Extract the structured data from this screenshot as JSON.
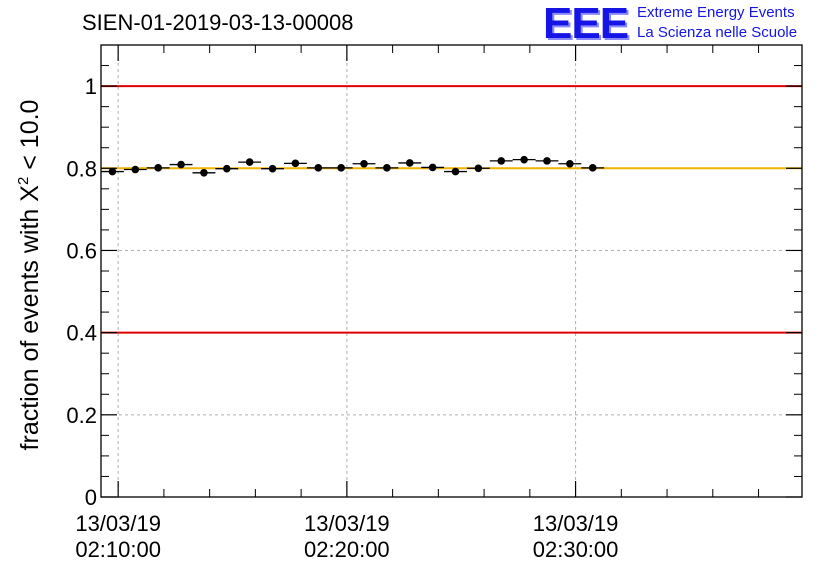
{
  "header": {
    "run_title": "SIEN-01-2019-03-13-00008",
    "logo_mark": "EEE",
    "logo_line1": "Extreme Energy Events",
    "logo_line2": "La Scienza nelle Scuole"
  },
  "chart_data": {
    "type": "scatter",
    "title": "SIEN-01-2019-03-13-00008",
    "ylabel_prefix": "fraction of events with X",
    "ylabel_superscript": "2",
    "ylabel_suffix": " < 10.0",
    "xlabel": "",
    "ylim": [
      0,
      1.1
    ],
    "xlim_minutes": [
      -0.75,
      29.9
    ],
    "y_major_ticks": [
      0,
      0.2,
      0.4,
      0.6,
      0.8,
      1
    ],
    "y_tick_labels": [
      "0",
      "0.2",
      "0.4",
      "0.6",
      "0.8",
      "1"
    ],
    "y_minor_step": 0.05,
    "x_major_ticks_minutes": [
      0,
      10,
      20
    ],
    "x_tick_labels": [
      {
        "date": "13/03/19",
        "time": "02:10:00"
      },
      {
        "date": "13/03/19",
        "time": "02:20:00"
      },
      {
        "date": "13/03/19",
        "time": "02:30:00"
      }
    ],
    "x_minor_step_minutes": 2,
    "grid": true,
    "reference_lines": [
      {
        "y": 1.0,
        "color": "#e00000"
      },
      {
        "y": 0.4,
        "color": "#e00000"
      },
      {
        "y": 0.8,
        "color": "#f0b400"
      }
    ],
    "series": [
      {
        "name": "fraction",
        "color": "#000000",
        "x_error_minutes": 0.5,
        "points": [
          {
            "x": -0.25,
            "y": 0.792
          },
          {
            "x": 0.75,
            "y": 0.797
          },
          {
            "x": 1.75,
            "y": 0.801
          },
          {
            "x": 2.75,
            "y": 0.809
          },
          {
            "x": 3.75,
            "y": 0.789
          },
          {
            "x": 4.75,
            "y": 0.799
          },
          {
            "x": 5.75,
            "y": 0.815
          },
          {
            "x": 6.75,
            "y": 0.799
          },
          {
            "x": 7.75,
            "y": 0.812
          },
          {
            "x": 8.75,
            "y": 0.801
          },
          {
            "x": 9.75,
            "y": 0.801
          },
          {
            "x": 10.75,
            "y": 0.811
          },
          {
            "x": 11.75,
            "y": 0.801
          },
          {
            "x": 12.75,
            "y": 0.813
          },
          {
            "x": 13.75,
            "y": 0.802
          },
          {
            "x": 14.75,
            "y": 0.792
          },
          {
            "x": 15.75,
            "y": 0.8
          },
          {
            "x": 16.75,
            "y": 0.818
          },
          {
            "x": 17.75,
            "y": 0.821
          },
          {
            "x": 18.75,
            "y": 0.818
          },
          {
            "x": 19.75,
            "y": 0.811
          },
          {
            "x": 20.75,
            "y": 0.801
          }
        ]
      }
    ]
  }
}
